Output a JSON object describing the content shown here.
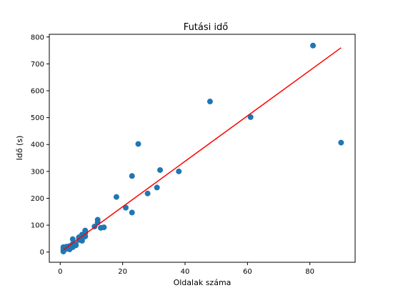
{
  "chart_data": {
    "type": "scatter",
    "title": "Futási idő",
    "xlabel": "Oldalak száma",
    "ylabel": "Idő (s)",
    "xlim": [
      -3.5,
      94.5
    ],
    "ylim": [
      -38,
      810
    ],
    "xticks": [
      0,
      20,
      40,
      60,
      80
    ],
    "yticks": [
      0,
      100,
      200,
      300,
      400,
      500,
      600,
      700,
      800
    ],
    "grid": false,
    "colors": {
      "points": "#1f77b4",
      "fit_line": "#ff0000",
      "axes": "#000000"
    },
    "series": [
      {
        "type": "scatter",
        "points": [
          [
            1,
            2
          ],
          [
            1,
            10
          ],
          [
            1,
            18
          ],
          [
            2,
            12
          ],
          [
            2,
            20
          ],
          [
            3,
            15
          ],
          [
            3,
            22
          ],
          [
            3,
            10
          ],
          [
            4,
            25
          ],
          [
            4,
            18
          ],
          [
            4,
            30
          ],
          [
            4,
            48
          ],
          [
            5,
            28
          ],
          [
            5,
            25
          ],
          [
            6,
            45
          ],
          [
            6,
            50
          ],
          [
            6,
            55
          ],
          [
            7,
            42
          ],
          [
            7,
            48
          ],
          [
            7,
            65
          ],
          [
            8,
            58
          ],
          [
            8,
            80
          ],
          [
            8,
            70
          ],
          [
            11,
            95
          ],
          [
            12,
            110
          ],
          [
            12,
            120
          ],
          [
            13,
            90
          ],
          [
            14,
            92
          ],
          [
            18,
            205
          ],
          [
            21,
            165
          ],
          [
            23,
            283
          ],
          [
            23,
            147
          ],
          [
            25,
            402
          ],
          [
            28,
            218
          ],
          [
            31,
            240
          ],
          [
            32,
            305
          ],
          [
            38,
            300
          ],
          [
            48,
            560
          ],
          [
            61,
            502
          ],
          [
            81,
            768
          ],
          [
            90,
            407
          ]
        ]
      },
      {
        "type": "line",
        "points": [
          [
            1,
            8
          ],
          [
            90,
            760
          ]
        ]
      }
    ]
  }
}
